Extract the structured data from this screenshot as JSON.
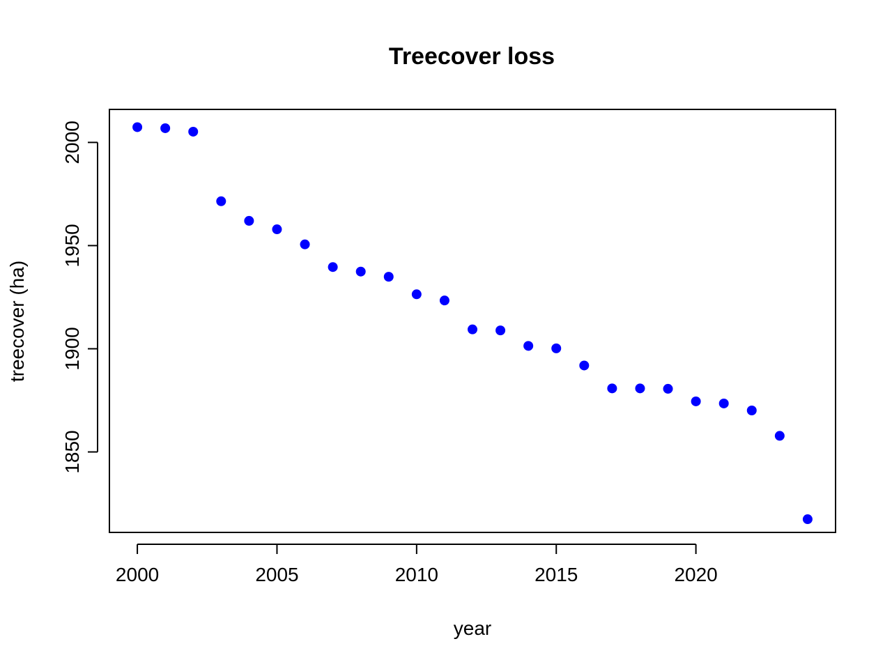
{
  "chart_data": {
    "type": "scatter",
    "title": "Treecover loss",
    "xlabel": "year",
    "ylabel": "treecover (ha)",
    "xlim": [
      1999.0,
      2025.0
    ],
    "ylim": [
      1811,
      2016
    ],
    "xticks": [
      2000,
      2005,
      2010,
      2015,
      2020
    ],
    "yticks": [
      1850,
      1900,
      1950,
      2000
    ],
    "grid": false,
    "legend": "none",
    "colors": {
      "points": "#0000ff"
    },
    "series": [
      {
        "x": [
          2000,
          2001,
          2002,
          2003,
          2004,
          2005,
          2006,
          2007,
          2008,
          2009,
          2010,
          2011,
          2012,
          2013,
          2014,
          2015,
          2016,
          2017,
          2018,
          2019,
          2020,
          2021,
          2022,
          2023,
          2024
        ],
        "y": [
          2007.4,
          2006.9,
          2005.2,
          1971.5,
          1962.0,
          1957.9,
          1950.6,
          1939.6,
          1937.4,
          1934.9,
          1926.4,
          1923.4,
          1909.4,
          1908.9,
          1901.4,
          1900.2,
          1891.9,
          1880.8,
          1880.8,
          1880.6,
          1874.5,
          1873.5,
          1870.1,
          1857.8,
          1817.4
        ]
      }
    ]
  }
}
